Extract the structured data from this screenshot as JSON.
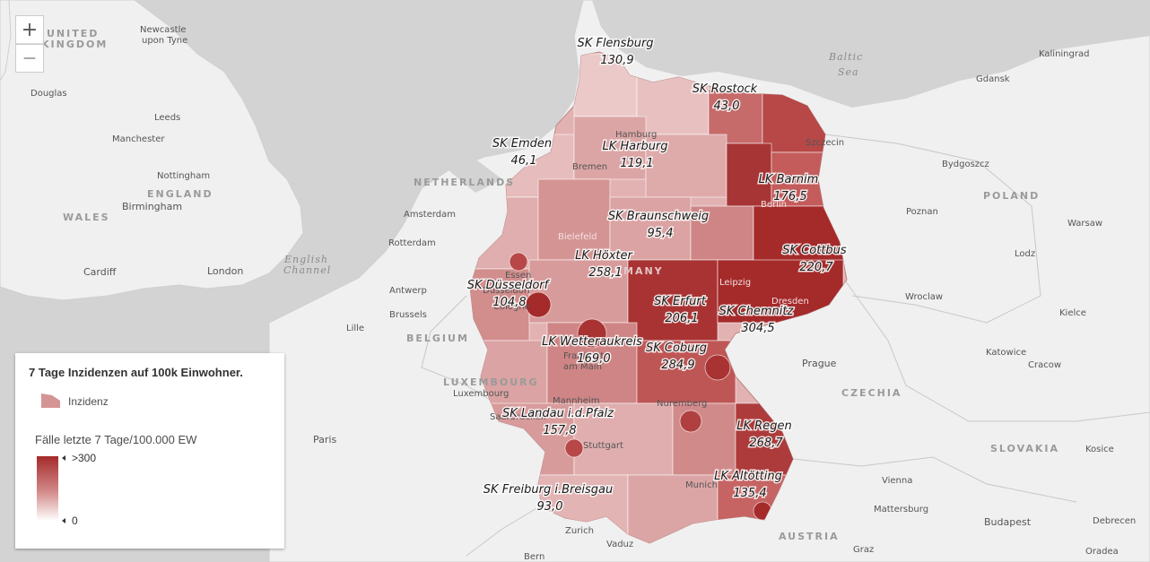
{
  "map": {
    "zoom_in_label": "+",
    "zoom_out_label": "—",
    "colors": {
      "water": "#d3d3d3",
      "land": "#f0f0f0",
      "low": "#f2d7d7",
      "mid": "#d59494",
      "high": "#a52a2a"
    },
    "places": [
      {
        "id": "newcastle",
        "text": "Newcastle"
      },
      {
        "id": "upon-tyne",
        "text": "upon Tyne"
      },
      {
        "id": "united",
        "text": "UNITED"
      },
      {
        "id": "kingdom",
        "text": "KINGDOM"
      },
      {
        "id": "douglas",
        "text": "Douglas"
      },
      {
        "id": "leeds",
        "text": "Leeds"
      },
      {
        "id": "manchester",
        "text": "Manchester"
      },
      {
        "id": "nottingham",
        "text": "Nottingham"
      },
      {
        "id": "england",
        "text": "ENGLAND"
      },
      {
        "id": "birmingham",
        "text": "Birmingham"
      },
      {
        "id": "wales",
        "text": "WALES"
      },
      {
        "id": "cardiff",
        "text": "Cardiff"
      },
      {
        "id": "london",
        "text": "London"
      },
      {
        "id": "english",
        "text": "English"
      },
      {
        "id": "channel",
        "text": "Channel"
      },
      {
        "id": "netherlands",
        "text": "NETHERLANDS"
      },
      {
        "id": "amsterdam",
        "text": "Amsterdam"
      },
      {
        "id": "rotterdam",
        "text": "Rotterdam"
      },
      {
        "id": "antwerp",
        "text": "Antwerp"
      },
      {
        "id": "brussels",
        "text": "Brussels"
      },
      {
        "id": "lille",
        "text": "Lille"
      },
      {
        "id": "belgium",
        "text": "BELGIUM"
      },
      {
        "id": "luxembourg-c",
        "text": "LUXEMBOURG"
      },
      {
        "id": "luxembourg",
        "text": "Luxembourg"
      },
      {
        "id": "paris",
        "text": "Paris"
      },
      {
        "id": "baltic",
        "text": "Baltic"
      },
      {
        "id": "sea",
        "text": "Sea"
      },
      {
        "id": "kaliningrad",
        "text": "Kaliningrad"
      },
      {
        "id": "gdansk",
        "text": "Gdansk"
      },
      {
        "id": "szczecin",
        "text": "Szczecin"
      },
      {
        "id": "bydgoszcz",
        "text": "Bydgoszcz"
      },
      {
        "id": "poland",
        "text": "POLAND"
      },
      {
        "id": "poznan",
        "text": "Poznan"
      },
      {
        "id": "warsaw",
        "text": "Warsaw"
      },
      {
        "id": "lodz",
        "text": "Lodz"
      },
      {
        "id": "wroclaw",
        "text": "Wroclaw"
      },
      {
        "id": "kielce",
        "text": "Kielce"
      },
      {
        "id": "katowice",
        "text": "Katowice"
      },
      {
        "id": "cracow",
        "text": "Cracow"
      },
      {
        "id": "prague",
        "text": "Prague"
      },
      {
        "id": "czechia",
        "text": "CZECHIA"
      },
      {
        "id": "slovakia",
        "text": "SLOVAKIA"
      },
      {
        "id": "kosice",
        "text": "Kosice"
      },
      {
        "id": "vienna",
        "text": "Vienna"
      },
      {
        "id": "mattersburg",
        "text": "Mattersburg"
      },
      {
        "id": "budapest",
        "text": "Budapest"
      },
      {
        "id": "debrecen",
        "text": "Debrecen"
      },
      {
        "id": "graz",
        "text": "Graz"
      },
      {
        "id": "austria",
        "text": "AUSTRIA"
      },
      {
        "id": "oradea",
        "text": "Oradea"
      },
      {
        "id": "zurich",
        "text": "Zurich"
      },
      {
        "id": "vaduz",
        "text": "Vaduz"
      },
      {
        "id": "bern",
        "text": "Bern"
      },
      {
        "id": "hamburg",
        "text": "Hamburg"
      },
      {
        "id": "bremen",
        "text": "Bremen"
      },
      {
        "id": "berlin",
        "text": "Berlin"
      },
      {
        "id": "bielefeld",
        "text": "Bielefeld"
      },
      {
        "id": "essen",
        "text": "Essen"
      },
      {
        "id": "dusseldorf",
        "text": "Düsseldorf"
      },
      {
        "id": "cologne",
        "text": "Cologne"
      },
      {
        "id": "leipzig",
        "text": "Leipzig"
      },
      {
        "id": "dresden",
        "text": "Dresden"
      },
      {
        "id": "frankfurt-1",
        "text": "Frankfurt"
      },
      {
        "id": "frankfurt-2",
        "text": "am Main"
      },
      {
        "id": "mannheim",
        "text": "Mannheim"
      },
      {
        "id": "nuremberg",
        "text": "Nuremberg"
      },
      {
        "id": "stuttgart",
        "text": "Stuttgart"
      },
      {
        "id": "munich",
        "text": "Munich"
      },
      {
        "id": "germany",
        "text": "GERMANY"
      },
      {
        "id": "saarbrucken",
        "text": "Saarbrücken"
      }
    ],
    "districts": [
      {
        "id": "flensburg",
        "name": "SK Flensburg",
        "value": "130,9"
      },
      {
        "id": "rostock",
        "name": "SK Rostock",
        "value": "43,0"
      },
      {
        "id": "emden",
        "name": "SK Emden",
        "value": "46,1"
      },
      {
        "id": "harburg",
        "name": "LK Harburg",
        "value": "119,1"
      },
      {
        "id": "barnim",
        "name": "LK Barnim",
        "value": "176,5"
      },
      {
        "id": "braunschweig",
        "name": "SK Braunschweig",
        "value": "95,4"
      },
      {
        "id": "cottbus",
        "name": "SK Cottbus",
        "value": "220,7"
      },
      {
        "id": "hoexter",
        "name": "LK Höxter",
        "value": "258,1"
      },
      {
        "id": "duesseldorf",
        "name": "SK Düsseldorf",
        "value": "104,8"
      },
      {
        "id": "erfurt",
        "name": "SK Erfurt",
        "value": "206,1"
      },
      {
        "id": "chemnitz",
        "name": "SK Chemnitz",
        "value": "304,5"
      },
      {
        "id": "wetterau",
        "name": "LK Wetteraukreis",
        "value": "169,0"
      },
      {
        "id": "coburg",
        "name": "SK Coburg",
        "value": "284,9"
      },
      {
        "id": "landau",
        "name": "SK Landau i.d.Pfalz",
        "value": "157,8"
      },
      {
        "id": "regen",
        "name": "LK Regen",
        "value": "268,7"
      },
      {
        "id": "altoetting",
        "name": "LK Altötting",
        "value": "135,4"
      },
      {
        "id": "freiburg",
        "name": "SK Freiburg i.Breisgau",
        "value": "93,0"
      }
    ]
  },
  "legend": {
    "title": "7 Tage Inzidenzen auf 100k Einwohner.",
    "symbol_label": "Inzidenz",
    "field_label": "Fälle letzte 7 Tage/100.000 EW",
    "max_label": ">300",
    "min_label": "0"
  }
}
